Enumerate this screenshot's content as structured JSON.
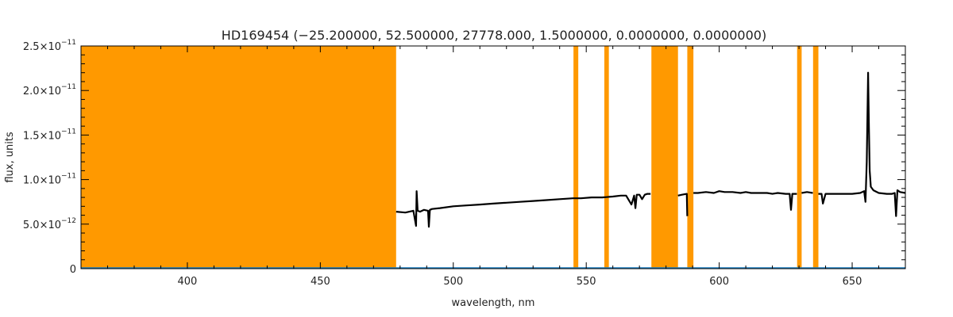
{
  "chart_data": {
    "type": "line",
    "title": "HD169454   (−25.200000, 52.500000, 27778.000, 1.5000000, 0.0000000, 0.0000000)",
    "xlabel": "wavelength, nm",
    "ylabel": "flux, units",
    "xlim": [
      360,
      670
    ],
    "ylim": [
      0,
      2.5e-11
    ],
    "x_ticks": [
      400,
      450,
      500,
      550,
      600,
      650
    ],
    "y_ticks": [
      {
        "value": 0,
        "mant": "0",
        "exp": ""
      },
      {
        "value": 5e-12,
        "mant": "5.0×10",
        "exp": "−12"
      },
      {
        "value": 1e-11,
        "mant": "1.0×10",
        "exp": "−11"
      },
      {
        "value": 1.5e-11,
        "mant": "1.5×10",
        "exp": "−11"
      },
      {
        "value": 2e-11,
        "mant": "2.0×10",
        "exp": "−11"
      },
      {
        "value": 2.5e-11,
        "mant": "2.5×10",
        "exp": "−11"
      }
    ],
    "masked_regions": [
      [
        360,
        478.5
      ],
      [
        545.2,
        547.0
      ],
      [
        556.8,
        558.5
      ],
      [
        574.5,
        584.5
      ],
      [
        588.0,
        590.3
      ],
      [
        629.3,
        631.0
      ],
      [
        635.3,
        637.3
      ]
    ],
    "mask_color": "#ff9900",
    "series": [
      {
        "color": "#000000",
        "x": [
          478.5,
          482,
          485,
          486.0,
          486.2,
          486.6,
          487.5,
          489,
          490.5,
          490.8,
          491.2,
          492,
          495,
          500,
          505,
          510,
          515,
          520,
          525,
          530,
          535,
          540,
          545,
          548,
          552,
          556,
          560,
          563,
          565,
          567,
          568,
          568.5,
          569,
          570,
          571,
          572,
          573,
          574.2
        ],
        "y": [
          6.4e-12,
          6.3e-12,
          6.5e-12,
          4.8e-12,
          8.7e-12,
          6.5e-12,
          6.4e-12,
          6.6e-12,
          6.5e-12,
          4.7e-12,
          6.6e-12,
          6.7e-12,
          6.8e-12,
          7e-12,
          7.1e-12,
          7.2e-12,
          7.3e-12,
          7.4e-12,
          7.5e-12,
          7.6e-12,
          7.7e-12,
          7.8e-12,
          7.9e-12,
          7.9e-12,
          8e-12,
          8e-12,
          8.1e-12,
          8.2e-12,
          8.2e-12,
          7.2e-12,
          8.2e-12,
          6.8e-12,
          8.3e-12,
          8.3e-12,
          7.8e-12,
          8.3e-12,
          8.4e-12,
          8.4e-12
        ]
      },
      {
        "color": "#000000",
        "x": [
          584.5,
          586,
          587.8,
          588.0
        ],
        "y": [
          8.2e-12,
          8.3e-12,
          8.4e-12,
          5.9e-12
        ]
      },
      {
        "color": "#000000",
        "x": [
          590.3,
          592,
          595,
          598,
          600,
          602,
          605,
          608,
          610,
          612,
          615,
          618,
          620,
          622,
          625,
          626.5,
          627,
          627.5,
          629.2
        ],
        "y": [
          8.5e-12,
          8.5e-12,
          8.6e-12,
          8.5e-12,
          8.7e-12,
          8.6e-12,
          8.6e-12,
          8.5e-12,
          8.6e-12,
          8.5e-12,
          8.5e-12,
          8.5e-12,
          8.4e-12,
          8.5e-12,
          8.4e-12,
          8.4e-12,
          6.6e-12,
          8.4e-12,
          8.4e-12
        ]
      },
      {
        "color": "#000000",
        "x": [
          631.0,
          633,
          635.2
        ],
        "y": [
          8.5e-12,
          8.6e-12,
          8.5e-12
        ]
      },
      {
        "color": "#000000",
        "x": [
          637.3,
          638.5,
          639,
          640,
          645,
          650,
          653,
          654.5,
          655.0,
          655.5,
          656.0,
          656.3,
          656.6,
          657,
          658,
          660,
          663,
          665,
          666,
          666.5,
          667,
          668,
          670
        ],
        "y": [
          8.4e-12,
          8.4e-12,
          7.3e-12,
          8.4e-12,
          8.4e-12,
          8.4e-12,
          8.5e-12,
          8.7e-12,
          7.5e-12,
          1.2e-11,
          2.2e-11,
          1.6e-11,
          1.1e-11,
          9.2e-12,
          8.8e-12,
          8.5e-12,
          8.4e-12,
          8.4e-12,
          8.5e-12,
          5.9e-12,
          8.8e-12,
          8.6e-12,
          8.5e-12
        ]
      }
    ],
    "baseline_color": "#1a7fc4"
  }
}
